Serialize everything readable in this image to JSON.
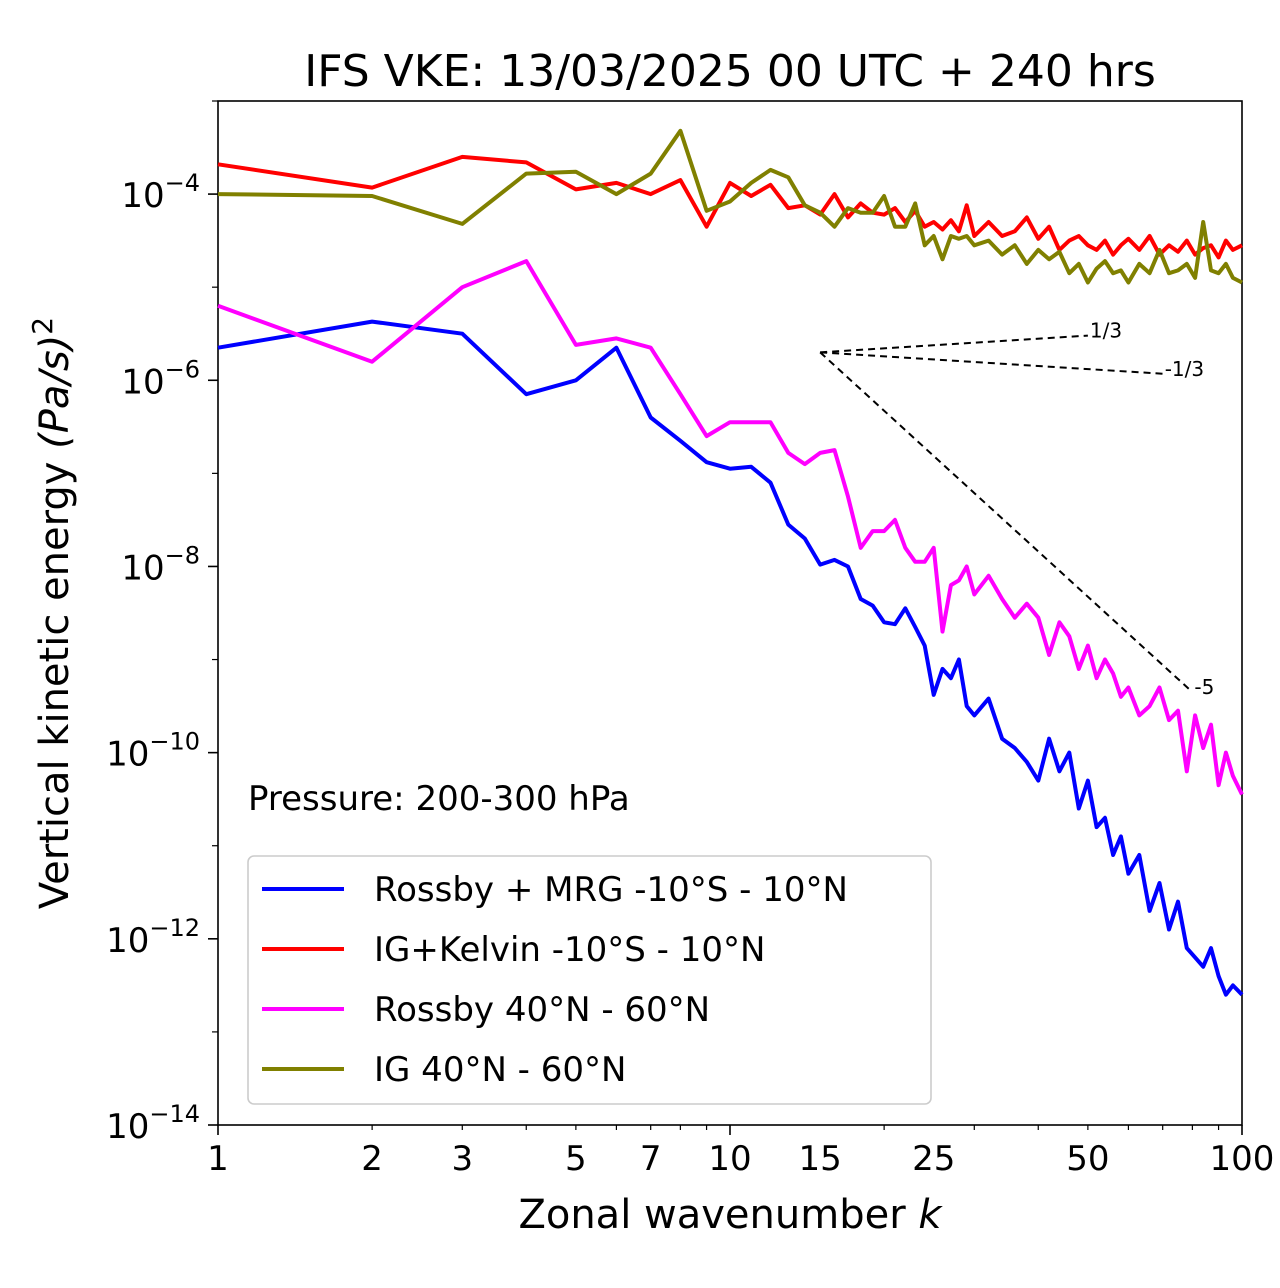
{
  "chart_data": {
    "type": "line",
    "title": "IFS VKE: 13/03/2025 00 UTC + 240 hrs",
    "xlabel_text": "Zonal wavenumber ",
    "xlabel_var": "k",
    "ylabel_text": "Vertical kinetic energy ",
    "ylabel_unit": "(Pa/s)",
    "ylabel_exp": "2",
    "xscale": "log",
    "yscale": "log",
    "xlim": [
      1,
      100
    ],
    "ylim": [
      1e-14,
      0.001
    ],
    "xticks": [
      {
        "value": 1,
        "label": "1"
      },
      {
        "value": 2,
        "label": "2"
      },
      {
        "value": 3,
        "label": "3"
      },
      {
        "value": 5,
        "label": "5"
      },
      {
        "value": 7,
        "label": "7"
      },
      {
        "value": 10,
        "label": "10"
      },
      {
        "value": 15,
        "label": "15"
      },
      {
        "value": 25,
        "label": "25"
      },
      {
        "value": 50,
        "label": "50"
      },
      {
        "value": 100,
        "label": "100"
      }
    ],
    "yticks": [
      {
        "value": -14,
        "base": "10",
        "exp": "−14"
      },
      {
        "value": -12,
        "base": "10",
        "exp": "−12"
      },
      {
        "value": -10,
        "base": "10",
        "exp": "−10"
      },
      {
        "value": -8,
        "base": "10",
        "exp": "−8"
      },
      {
        "value": -6,
        "base": "10",
        "exp": "−6"
      },
      {
        "value": -4,
        "base": "10",
        "exp": "−4"
      }
    ],
    "annotation": "Pressure: 200-300 hPa",
    "legend_position": "lower-left",
    "grid": false,
    "series": [
      {
        "name": "Rossby + MRG -10°S - 10°N",
        "color": "#0000ff",
        "x": [
          1,
          2,
          3,
          4,
          5,
          6,
          7,
          8,
          9,
          10,
          11,
          12,
          13,
          14,
          15,
          16,
          17,
          18,
          19,
          20,
          21,
          22,
          23,
          24,
          25,
          26,
          27,
          28,
          29,
          30,
          32,
          34,
          36,
          38,
          40,
          42,
          44,
          46,
          48,
          50,
          52,
          54,
          56,
          58,
          60,
          63,
          66,
          69,
          72,
          75,
          78,
          81,
          84,
          87,
          90,
          93,
          96,
          100
        ],
        "y_log10": [
          -5.65,
          -5.37,
          -5.5,
          -6.15,
          -6.0,
          -5.65,
          -6.4,
          -6.65,
          -6.88,
          -6.95,
          -6.93,
          -7.1,
          -7.55,
          -7.7,
          -7.98,
          -7.93,
          -8.0,
          -8.35,
          -8.42,
          -8.6,
          -8.62,
          -8.45,
          -8.65,
          -8.85,
          -9.38,
          -9.1,
          -9.2,
          -9.0,
          -9.5,
          -9.6,
          -9.42,
          -9.85,
          -9.95,
          -10.1,
          -10.3,
          -9.85,
          -10.2,
          -10.0,
          -10.6,
          -10.3,
          -10.8,
          -10.7,
          -11.1,
          -10.9,
          -11.3,
          -11.1,
          -11.7,
          -11.4,
          -11.9,
          -11.6,
          -12.1,
          -12.2,
          -12.3,
          -12.1,
          -12.4,
          -12.6,
          -12.5,
          -12.6
        ]
      },
      {
        "name": "IG+Kelvin -10°S - 10°N",
        "color": "#ff0000",
        "x": [
          1,
          2,
          3,
          4,
          5,
          6,
          7,
          8,
          9,
          10,
          11,
          12,
          13,
          14,
          15,
          16,
          17,
          18,
          19,
          20,
          21,
          22,
          23,
          24,
          25,
          26,
          27,
          28,
          29,
          30,
          32,
          34,
          36,
          38,
          40,
          42,
          44,
          46,
          48,
          50,
          52,
          54,
          56,
          58,
          60,
          63,
          66,
          69,
          72,
          75,
          78,
          81,
          84,
          87,
          90,
          93,
          96,
          100
        ],
        "y_log10": [
          -3.68,
          -3.93,
          -3.6,
          -3.66,
          -3.95,
          -3.88,
          -4.0,
          -3.85,
          -4.35,
          -3.88,
          -4.02,
          -3.9,
          -4.15,
          -4.12,
          -4.22,
          -4.0,
          -4.25,
          -4.1,
          -4.2,
          -4.22,
          -4.15,
          -4.3,
          -4.18,
          -4.35,
          -4.3,
          -4.38,
          -4.28,
          -4.4,
          -4.12,
          -4.45,
          -4.3,
          -4.45,
          -4.4,
          -4.25,
          -4.48,
          -4.35,
          -4.6,
          -4.5,
          -4.45,
          -4.55,
          -4.6,
          -4.5,
          -4.65,
          -4.55,
          -4.48,
          -4.6,
          -4.45,
          -4.65,
          -4.55,
          -4.62,
          -4.5,
          -4.65,
          -4.58,
          -4.55,
          -4.68,
          -4.5,
          -4.6,
          -4.55
        ]
      },
      {
        "name": "Rossby 40°N - 60°N",
        "color": "#ff00ff",
        "x": [
          1,
          2,
          3,
          4,
          5,
          6,
          7,
          8,
          9,
          10,
          11,
          12,
          13,
          14,
          15,
          16,
          17,
          18,
          19,
          20,
          21,
          22,
          23,
          24,
          25,
          26,
          27,
          28,
          29,
          30,
          32,
          34,
          36,
          38,
          40,
          42,
          44,
          46,
          48,
          50,
          52,
          54,
          56,
          58,
          60,
          63,
          66,
          69,
          72,
          75,
          78,
          81,
          84,
          87,
          90,
          93,
          96,
          100
        ],
        "y_log10": [
          -5.2,
          -5.8,
          -5.0,
          -4.72,
          -5.62,
          -5.55,
          -5.65,
          -6.15,
          -6.6,
          -6.45,
          -6.45,
          -6.45,
          -6.78,
          -6.9,
          -6.78,
          -6.75,
          -7.25,
          -7.8,
          -7.62,
          -7.62,
          -7.5,
          -7.8,
          -7.95,
          -7.95,
          -7.8,
          -8.7,
          -8.2,
          -8.15,
          -8.0,
          -8.3,
          -8.1,
          -8.35,
          -8.55,
          -8.4,
          -8.55,
          -8.95,
          -8.6,
          -8.75,
          -9.1,
          -8.85,
          -9.2,
          -9.0,
          -9.15,
          -9.4,
          -9.3,
          -9.6,
          -9.5,
          -9.3,
          -9.65,
          -9.55,
          -10.2,
          -9.6,
          -9.95,
          -9.7,
          -10.35,
          -10.0,
          -10.25,
          -10.45
        ]
      },
      {
        "name": "IG 40°N - 60°N",
        "color": "#808000",
        "x": [
          1,
          2,
          3,
          4,
          5,
          6,
          7,
          8,
          9,
          10,
          11,
          12,
          13,
          14,
          15,
          16,
          17,
          18,
          19,
          20,
          21,
          22,
          23,
          24,
          25,
          26,
          27,
          28,
          29,
          30,
          32,
          34,
          36,
          38,
          40,
          42,
          44,
          46,
          48,
          50,
          52,
          54,
          56,
          58,
          60,
          63,
          66,
          69,
          72,
          75,
          78,
          81,
          84,
          87,
          90,
          93,
          96,
          100
        ],
        "y_log10": [
          -4.0,
          -4.02,
          -4.32,
          -3.78,
          -3.76,
          -4.0,
          -3.78,
          -3.32,
          -4.18,
          -4.08,
          -3.88,
          -3.74,
          -3.82,
          -4.12,
          -4.2,
          -4.35,
          -4.15,
          -4.2,
          -4.2,
          -4.02,
          -4.35,
          -4.35,
          -4.1,
          -4.55,
          -4.45,
          -4.7,
          -4.45,
          -4.48,
          -4.45,
          -4.55,
          -4.5,
          -4.65,
          -4.55,
          -4.75,
          -4.6,
          -4.7,
          -4.62,
          -4.85,
          -4.75,
          -4.95,
          -4.8,
          -4.72,
          -4.85,
          -4.82,
          -4.95,
          -4.75,
          -4.85,
          -4.6,
          -4.85,
          -4.82,
          -4.75,
          -4.9,
          -4.3,
          -4.82,
          -4.85,
          -4.75,
          -4.9,
          -4.95
        ]
      }
    ],
    "reference_slopes": [
      {
        "label": "1/3",
        "x": [
          15,
          50
        ],
        "y_log10": [
          -5.7,
          -5.52
        ]
      },
      {
        "label": "-1/3",
        "x": [
          15,
          70
        ],
        "y_log10": [
          -5.7,
          -5.93
        ]
      },
      {
        "label": "-5",
        "x": [
          15,
          80
        ],
        "y_log10": [
          -5.7,
          -9.35
        ]
      }
    ]
  }
}
